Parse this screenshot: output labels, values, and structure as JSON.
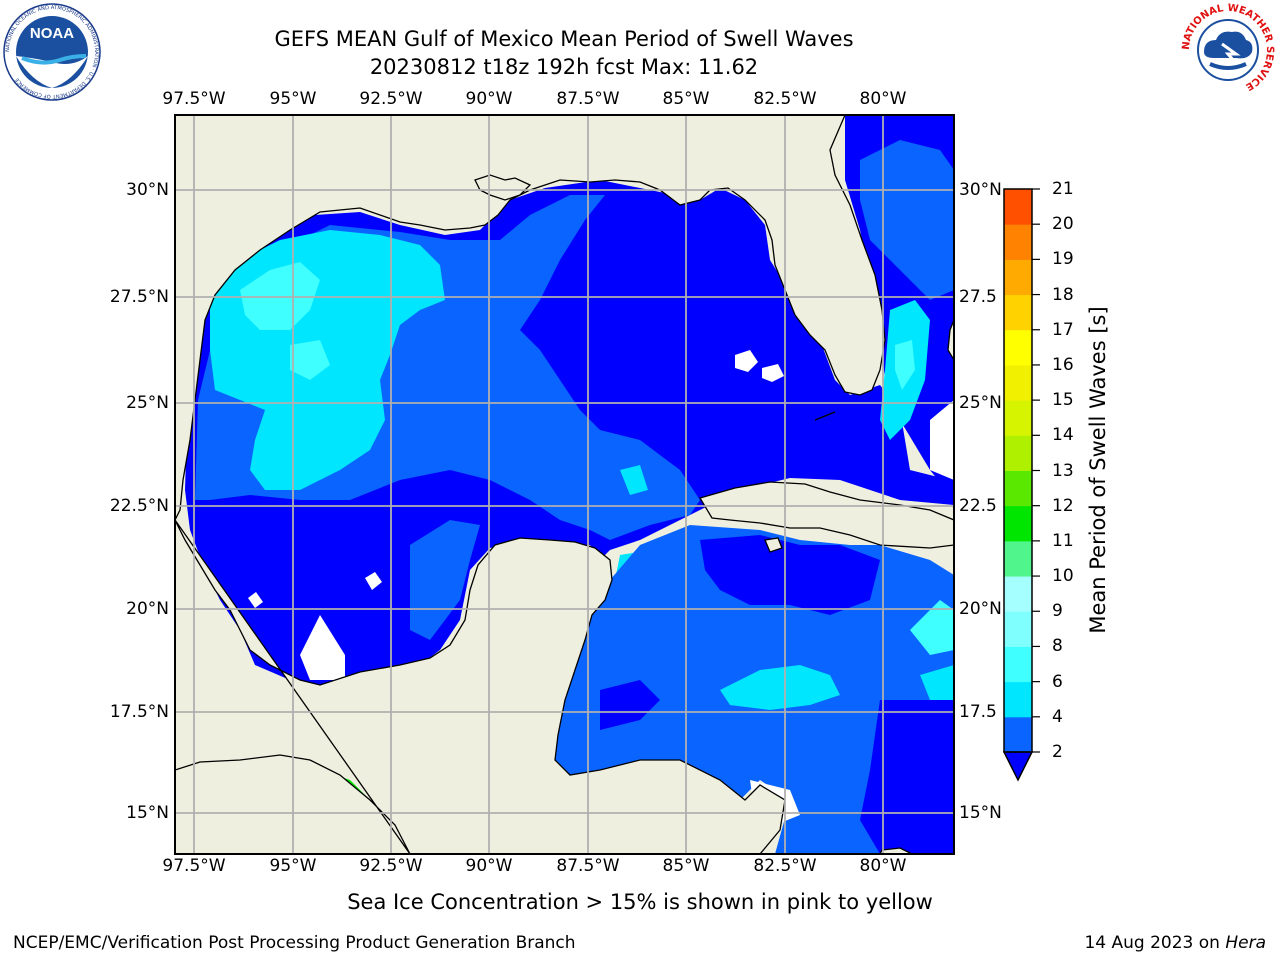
{
  "title": {
    "line1": "GEFS MEAN Gulf of Mexico Mean Period of Swell Waves",
    "line2": "20230812 t18z 192h fcst   Max: 11.62"
  },
  "logos": {
    "noaa": {
      "name": "NOAA",
      "ring_text": "NATIONAL OCEANIC AND ATMOSPHERIC ADMINISTRATION · U.S. DEPARTMENT OF COMMERCE"
    },
    "nws": {
      "ring_text": "NATIONAL WEATHER SERVICE"
    }
  },
  "map": {
    "lon_labels": [
      "97.5°W",
      "95°W",
      "92.5°W",
      "90°W",
      "87.5°W",
      "85°W",
      "82.5°W",
      "80°W"
    ],
    "lat_labels_left": [
      "30°N",
      "27.5°N",
      "25°N",
      "22.5°N",
      "20°N",
      "17.5°N",
      "15°N"
    ],
    "lat_labels_right": [
      "30°N",
      "27.5",
      "25°N",
      "22.5",
      "20°N",
      "17.5",
      "15°N"
    ],
    "land_color": "#efefdf",
    "grid_color": "#b0b0b0"
  },
  "colorbar": {
    "label": "Mean Period of Swell Waves [s]",
    "ticks": [
      "2",
      "4",
      "6",
      "8",
      "9",
      "10",
      "11",
      "12",
      "13",
      "14",
      "15",
      "16",
      "17",
      "18",
      "19",
      "20",
      "21"
    ],
    "colors": [
      "#0a64ff",
      "#00e6ff",
      "#40ffff",
      "#80ffff",
      "#a6ffff",
      "#50f58c",
      "#00e600",
      "#5ae800",
      "#aef000",
      "#d6f400",
      "#f0f000",
      "#ffff00",
      "#ffd200",
      "#ffaa00",
      "#ff8200",
      "#ff5000",
      "#ff2800",
      "#ff0000"
    ],
    "under_color": "#0000ff"
  },
  "caption": "Sea Ice Concentration > 15% is shown in pink to yellow",
  "footer": {
    "left": "NCEP/EMC/Verification Post Processing Product Generation Branch",
    "right_date": "14 Aug 2023 on",
    "right_host": "Hera"
  }
}
